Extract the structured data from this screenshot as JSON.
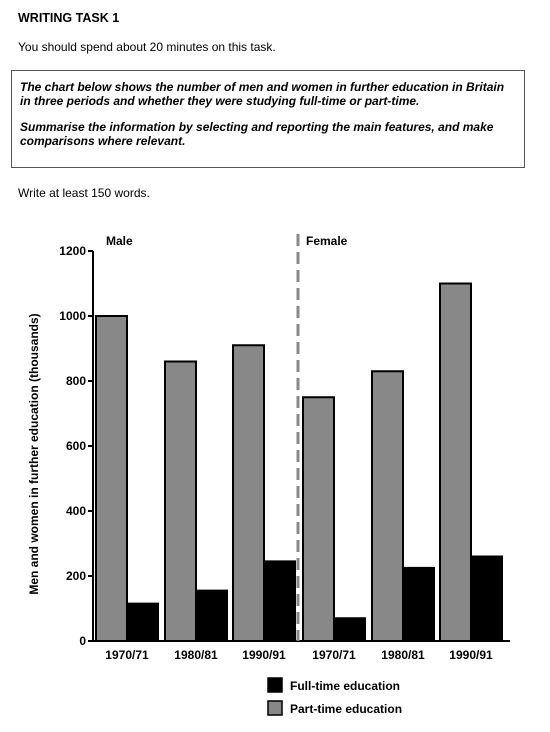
{
  "heading": "WRITING TASK 1",
  "instruction": "You should spend about 20 minutes on this task.",
  "task_box": {
    "line1": "The chart below shows the number of men and women in further education in Britain in three periods and whether they were studying full-time or part-time.",
    "line2": "Summarise the information by selecting and reporting the main features, and make comparisons where relevant."
  },
  "word_count": "Write at least 150 words.",
  "colors": {
    "part_time": "#888888",
    "full_time": "#000000",
    "divider": "#888888"
  },
  "chart_data": {
    "type": "bar",
    "panels": [
      "Male",
      "Female"
    ],
    "categories": [
      "1970/71",
      "1980/81",
      "1990/91",
      "1970/71",
      "1980/81",
      "1990/91"
    ],
    "series": [
      {
        "name": "Part-time education",
        "values": [
          1000,
          860,
          910,
          750,
          830,
          1100
        ]
      },
      {
        "name": "Full-time education",
        "values": [
          115,
          155,
          245,
          70,
          225,
          260
        ]
      }
    ],
    "ylabel": "Men and women in further education (thousands)",
    "ylim": [
      0,
      1200
    ],
    "yticks": [
      "0",
      "200",
      "400",
      "600",
      "800",
      "1000",
      "1200"
    ],
    "legend": [
      "Full-time education",
      "Part-time education"
    ],
    "legend_position": "bottom",
    "grid": false
  }
}
